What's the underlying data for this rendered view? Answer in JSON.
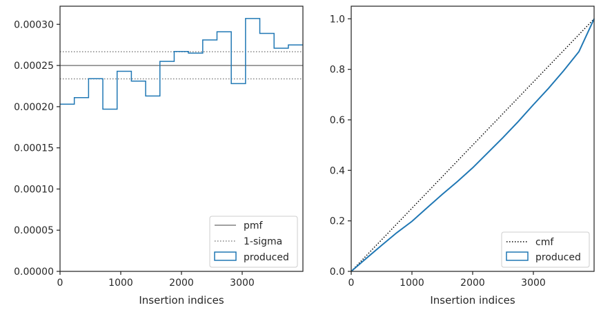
{
  "chart_data": [
    {
      "type": "step",
      "xlabel": "Insertion indices",
      "ylabel": "",
      "xlim": [
        0,
        4000
      ],
      "ylim": [
        0,
        0.000322
      ],
      "xticks": [
        0,
        1000,
        2000,
        3000
      ],
      "xtick_labels": [
        "0",
        "1000",
        "2000",
        "3000"
      ],
      "yticks": [
        0,
        5e-05,
        0.0001,
        0.00015,
        0.0002,
        0.00025,
        0.0003
      ],
      "ytick_labels": [
        "0.00000",
        "0.00005",
        "0.00010",
        "0.00015",
        "0.00020",
        "0.00025",
        "0.00030"
      ],
      "grid": false,
      "legend_position": "lower-right",
      "hlines": [
        {
          "name": "pmf",
          "y": 0.00025,
          "style": "solid",
          "color": "#808080"
        },
        {
          "name": "1-sigma",
          "y": 0.0002667,
          "style": "dotted",
          "color": "#808080"
        },
        {
          "name": "1-sigma",
          "y": 0.0002338,
          "style": "dotted",
          "color": "#808080"
        }
      ],
      "series": [
        {
          "name": "produced",
          "color": "#1f77b4",
          "bin_edges": [
            0,
            235,
            470,
            705,
            940,
            1175,
            1410,
            1645,
            1880,
            2115,
            2350,
            2585,
            2820,
            3055,
            3290,
            3525,
            3760,
            4000
          ],
          "values": [
            0.000203,
            0.000211,
            0.000234,
            0.000197,
            0.000243,
            0.000231,
            0.000213,
            0.000255,
            0.000267,
            0.000265,
            0.000281,
            0.000291,
            0.000228,
            0.000307,
            0.000289,
            0.000271,
            0.000275
          ]
        }
      ],
      "legend": [
        "pmf",
        "1-sigma",
        "produced"
      ]
    },
    {
      "type": "line",
      "xlabel": "Insertion indices",
      "ylabel": "",
      "xlim": [
        0,
        4000
      ],
      "ylim": [
        0,
        1.05
      ],
      "xticks": [
        0,
        1000,
        2000,
        3000
      ],
      "xtick_labels": [
        "0",
        "1000",
        "2000",
        "3000"
      ],
      "yticks": [
        0,
        0.2,
        0.4,
        0.6,
        0.8,
        1.0
      ],
      "ytick_labels": [
        "0.0",
        "0.2",
        "0.4",
        "0.6",
        "0.8",
        "1.0"
      ],
      "grid": false,
      "legend_position": "lower-right",
      "series": [
        {
          "name": "cmf",
          "style": "dotted",
          "color": "#000000",
          "x": [
            0,
            4000
          ],
          "y": [
            0,
            1.0
          ]
        },
        {
          "name": "produced",
          "style": "solid",
          "color": "#1f77b4",
          "x": [
            0,
            250,
            500,
            750,
            1000,
            1250,
            1500,
            1750,
            2000,
            2250,
            2500,
            2750,
            3000,
            3250,
            3500,
            3750,
            4000
          ],
          "y": [
            0,
            0.052,
            0.103,
            0.153,
            0.198,
            0.252,
            0.305,
            0.356,
            0.41,
            0.47,
            0.53,
            0.593,
            0.66,
            0.725,
            0.795,
            0.87,
            1.0
          ]
        }
      ],
      "legend": [
        "cmf",
        "produced"
      ]
    }
  ]
}
